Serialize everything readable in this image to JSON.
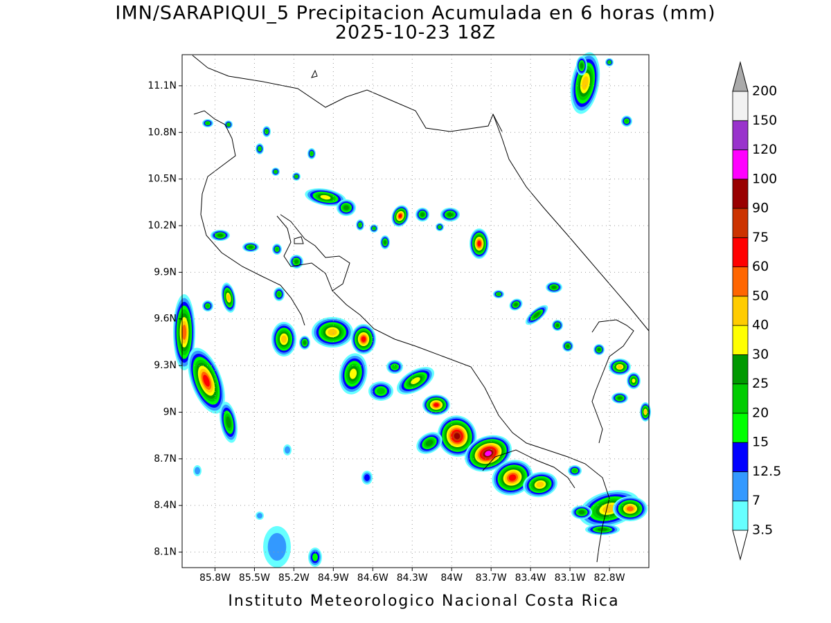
{
  "chart_data": {
    "type": "contour-map",
    "title": "IMN/SARAPIQUI_5 Precipitacion Acumulada en 6 horas (mm)",
    "subtitle": "2025-10-23 18Z",
    "footer": "Instituto Meteorologico Nacional Costa Rica",
    "xlim": [
      -86.05,
      -82.5
    ],
    "ylim": [
      8.0,
      11.3
    ],
    "xticks": [
      {
        "value": -85.8,
        "label": "85.8W"
      },
      {
        "value": -85.5,
        "label": "85.5W"
      },
      {
        "value": -85.2,
        "label": "85.2W"
      },
      {
        "value": -84.9,
        "label": "84.9W"
      },
      {
        "value": -84.6,
        "label": "84.6W"
      },
      {
        "value": -84.3,
        "label": "84.3W"
      },
      {
        "value": -84.0,
        "label": "84W"
      },
      {
        "value": -83.7,
        "label": "83.7W"
      },
      {
        "value": -83.4,
        "label": "83.4W"
      },
      {
        "value": -83.1,
        "label": "83.1W"
      },
      {
        "value": -82.8,
        "label": "82.8W"
      }
    ],
    "yticks": [
      {
        "value": 8.1,
        "label": "8.1N"
      },
      {
        "value": 8.4,
        "label": "8.4N"
      },
      {
        "value": 8.7,
        "label": "8.7N"
      },
      {
        "value": 9.0,
        "label": "9N"
      },
      {
        "value": 9.3,
        "label": "9.3N"
      },
      {
        "value": 9.6,
        "label": "9.6N"
      },
      {
        "value": 9.9,
        "label": "9.9N"
      },
      {
        "value": 10.2,
        "label": "10.2N"
      },
      {
        "value": 10.5,
        "label": "10.5N"
      },
      {
        "value": 10.8,
        "label": "10.8N"
      },
      {
        "value": 11.1,
        "label": "11.1N"
      }
    ],
    "grid": true,
    "colorbar": {
      "levels": [
        3.5,
        7,
        12.5,
        15,
        20,
        25,
        30,
        40,
        50,
        60,
        75,
        90,
        100,
        120,
        150,
        200
      ],
      "colors": [
        "#66ffff",
        "#3399ff",
        "#0000ff",
        "#00ff00",
        "#00cc00",
        "#009900",
        "#ffff00",
        "#ffcc00",
        "#ff6600",
        "#ff0000",
        "#cc3300",
        "#990000",
        "#ff00ff",
        "#9933cc",
        "#f2f2f2"
      ],
      "under_color": "#ffffff",
      "over_color": "#aaaaaa"
    }
  }
}
